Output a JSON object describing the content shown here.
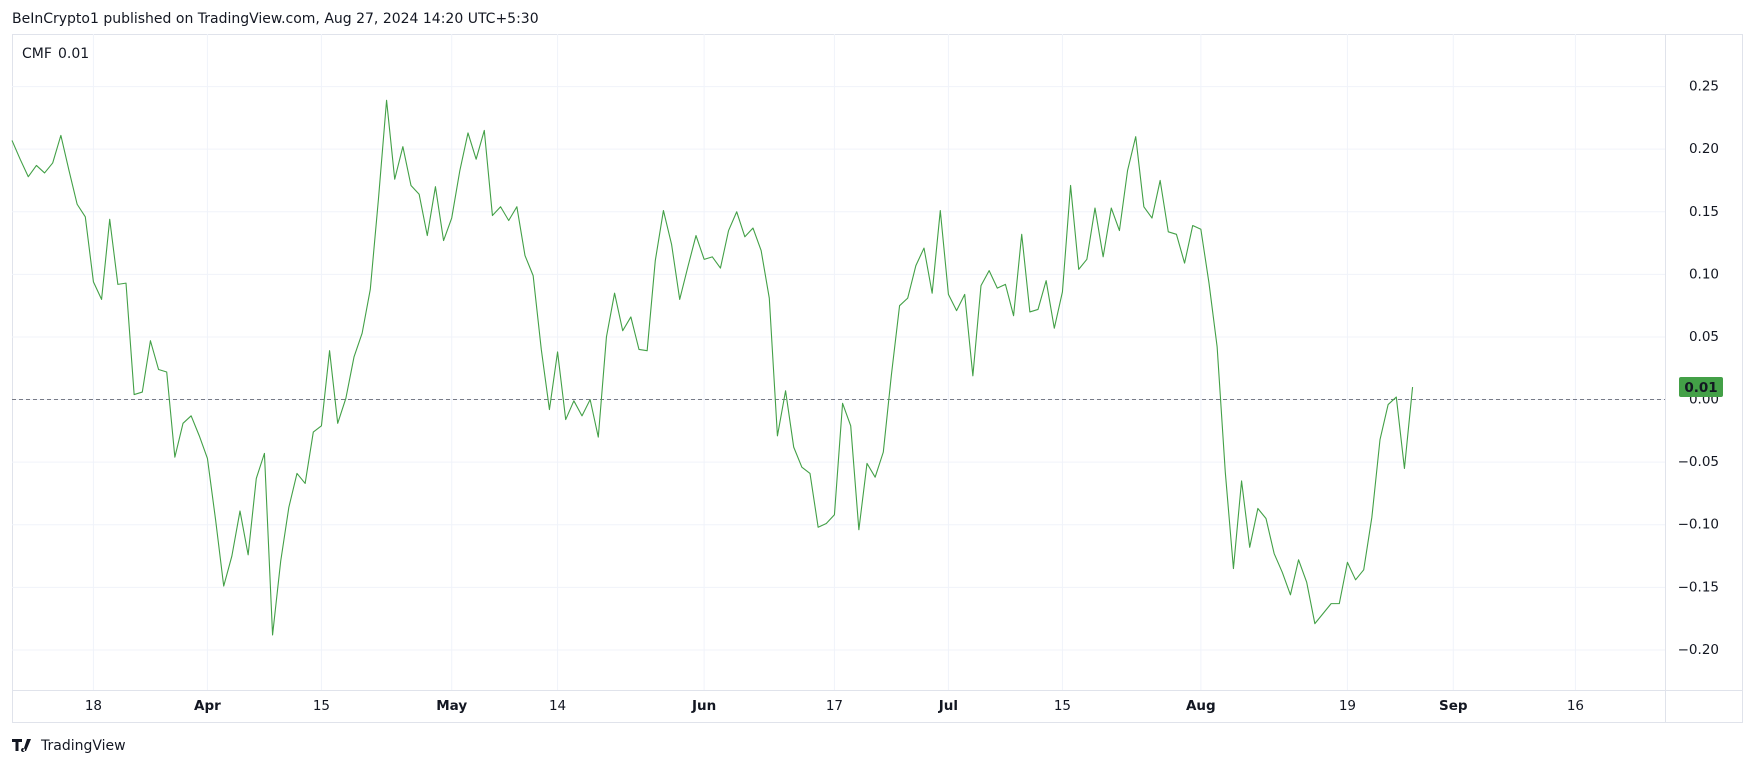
{
  "header": {
    "text": "BeInCrypto1 published on TradingView.com, Aug 27, 2024 14:20 UTC+5:30"
  },
  "footer": {
    "text": "TradingView"
  },
  "chart_data": {
    "type": "line",
    "x": [
      "2024-03-08",
      "2024-03-09",
      "2024-03-10",
      "2024-03-11",
      "2024-03-12",
      "2024-03-13",
      "2024-03-14",
      "2024-03-15",
      "2024-03-16",
      "2024-03-17",
      "2024-03-18",
      "2024-03-19",
      "2024-03-20",
      "2024-03-21",
      "2024-03-22",
      "2024-03-23",
      "2024-03-24",
      "2024-03-25",
      "2024-03-26",
      "2024-03-27",
      "2024-03-28",
      "2024-03-29",
      "2024-03-30",
      "2024-03-31",
      "2024-04-01",
      "2024-04-02",
      "2024-04-03",
      "2024-04-04",
      "2024-04-05",
      "2024-04-06",
      "2024-04-07",
      "2024-04-08",
      "2024-04-09",
      "2024-04-10",
      "2024-04-11",
      "2024-04-12",
      "2024-04-13",
      "2024-04-14",
      "2024-04-15",
      "2024-04-16",
      "2024-04-17",
      "2024-04-18",
      "2024-04-19",
      "2024-04-20",
      "2024-04-21",
      "2024-04-22",
      "2024-04-23",
      "2024-04-24",
      "2024-04-25",
      "2024-04-26",
      "2024-04-27",
      "2024-04-28",
      "2024-04-29",
      "2024-04-30",
      "2024-05-01",
      "2024-05-02",
      "2024-05-03",
      "2024-05-04",
      "2024-05-05",
      "2024-05-06",
      "2024-05-07",
      "2024-05-08",
      "2024-05-09",
      "2024-05-10",
      "2024-05-11",
      "2024-05-12",
      "2024-05-13",
      "2024-05-14",
      "2024-05-15",
      "2024-05-16",
      "2024-05-17",
      "2024-05-18",
      "2024-05-19",
      "2024-05-20",
      "2024-05-21",
      "2024-05-22",
      "2024-05-23",
      "2024-05-24",
      "2024-05-25",
      "2024-05-26",
      "2024-05-27",
      "2024-05-28",
      "2024-05-29",
      "2024-05-30",
      "2024-05-31",
      "2024-06-01",
      "2024-06-02",
      "2024-06-03",
      "2024-06-04",
      "2024-06-05",
      "2024-06-06",
      "2024-06-07",
      "2024-06-08",
      "2024-06-09",
      "2024-06-10",
      "2024-06-11",
      "2024-06-12",
      "2024-06-13",
      "2024-06-14",
      "2024-06-15",
      "2024-06-16",
      "2024-06-17",
      "2024-06-18",
      "2024-06-19",
      "2024-06-20",
      "2024-06-21",
      "2024-06-22",
      "2024-06-23",
      "2024-06-24",
      "2024-06-25",
      "2024-06-26",
      "2024-06-27",
      "2024-06-28",
      "2024-06-29",
      "2024-06-30",
      "2024-07-01",
      "2024-07-02",
      "2024-07-03",
      "2024-07-04",
      "2024-07-05",
      "2024-07-06",
      "2024-07-07",
      "2024-07-08",
      "2024-07-09",
      "2024-07-10",
      "2024-07-11",
      "2024-07-12",
      "2024-07-13",
      "2024-07-14",
      "2024-07-15",
      "2024-07-16",
      "2024-07-17",
      "2024-07-18",
      "2024-07-19",
      "2024-07-20",
      "2024-07-21",
      "2024-07-22",
      "2024-07-23",
      "2024-07-24",
      "2024-07-25",
      "2024-07-26",
      "2024-07-27",
      "2024-07-28",
      "2024-07-29",
      "2024-07-30",
      "2024-07-31",
      "2024-08-01",
      "2024-08-02",
      "2024-08-03",
      "2024-08-04",
      "2024-08-05",
      "2024-08-06",
      "2024-08-07",
      "2024-08-08",
      "2024-08-09",
      "2024-08-10",
      "2024-08-11",
      "2024-08-12",
      "2024-08-13",
      "2024-08-14",
      "2024-08-15",
      "2024-08-16",
      "2024-08-17",
      "2024-08-18",
      "2024-08-19",
      "2024-08-20",
      "2024-08-21",
      "2024-08-22",
      "2024-08-23",
      "2024-08-24",
      "2024-08-25",
      "2024-08-26",
      "2024-08-27"
    ],
    "series": [
      {
        "name": "CMF",
        "color": "#43a047",
        "last_value_label": "0.01",
        "values": [
          0.207,
          0.192,
          0.178,
          0.187,
          0.181,
          0.189,
          0.211,
          0.183,
          0.156,
          0.146,
          0.094,
          0.08,
          0.144,
          0.092,
          0.093,
          0.004,
          0.006,
          0.047,
          0.024,
          0.022,
          -0.046,
          -0.019,
          -0.013,
          -0.029,
          -0.047,
          -0.096,
          -0.149,
          -0.125,
          -0.089,
          -0.124,
          -0.063,
          -0.043,
          -0.188,
          -0.129,
          -0.086,
          -0.059,
          -0.067,
          -0.026,
          -0.021,
          0.039,
          -0.019,
          0.001,
          0.034,
          0.053,
          0.088,
          0.16,
          0.239,
          0.176,
          0.202,
          0.171,
          0.164,
          0.131,
          0.17,
          0.127,
          0.145,
          0.183,
          0.213,
          0.192,
          0.215,
          0.147,
          0.154,
          0.143,
          0.154,
          0.115,
          0.099,
          0.04,
          -0.008,
          0.038,
          -0.016,
          -0.001,
          -0.013,
          0.0,
          -0.03,
          0.05,
          0.085,
          0.055,
          0.066,
          0.04,
          0.039,
          0.111,
          0.151,
          0.124,
          0.08,
          0.106,
          0.131,
          0.112,
          0.114,
          0.105,
          0.135,
          0.15,
          0.13,
          0.137,
          0.119,
          0.081,
          -0.029,
          0.007,
          -0.038,
          -0.054,
          -0.059,
          -0.102,
          -0.099,
          -0.092,
          -0.003,
          -0.021,
          -0.104,
          -0.051,
          -0.062,
          -0.042,
          0.02,
          0.075,
          0.081,
          0.107,
          0.121,
          0.085,
          0.151,
          0.084,
          0.071,
          0.084,
          0.019,
          0.091,
          0.103,
          0.089,
          0.092,
          0.067,
          0.132,
          0.07,
          0.072,
          0.095,
          0.057,
          0.086,
          0.171,
          0.104,
          0.112,
          0.153,
          0.114,
          0.153,
          0.135,
          0.183,
          0.21,
          0.154,
          0.145,
          0.175,
          0.134,
          0.132,
          0.109,
          0.139,
          0.136,
          0.093,
          0.042,
          -0.058,
          -0.135,
          -0.065,
          -0.118,
          -0.087,
          -0.095,
          -0.123,
          -0.138,
          -0.156,
          -0.128,
          -0.146,
          -0.179,
          -0.171,
          -0.163,
          -0.163,
          -0.13,
          -0.144,
          -0.136,
          -0.094,
          -0.032,
          -0.004,
          0.002,
          -0.055,
          0.01
        ]
      }
    ],
    "reference_line": 0,
    "xlim": [
      "2024-03-08",
      "2024-09-27"
    ],
    "xticks": [
      {
        "value": "2024-03-18",
        "label": "18"
      },
      {
        "value": "2024-04-01",
        "label": "Apr"
      },
      {
        "value": "2024-04-15",
        "label": "15"
      },
      {
        "value": "2024-05-01",
        "label": "May"
      },
      {
        "value": "2024-05-14",
        "label": "14"
      },
      {
        "value": "2024-06-01",
        "label": "Jun"
      },
      {
        "value": "2024-06-17",
        "label": "17"
      },
      {
        "value": "2024-07-01",
        "label": "Jul"
      },
      {
        "value": "2024-07-15",
        "label": "15"
      },
      {
        "value": "2024-08-01",
        "label": "Aug"
      },
      {
        "value": "2024-08-19",
        "label": "19"
      },
      {
        "value": "2024-09-01",
        "label": "Sep"
      },
      {
        "value": "2024-09-16",
        "label": "16"
      }
    ],
    "ylim": [
      -0.232,
      0.292
    ],
    "yticks": [
      {
        "value": -0.2,
        "label": "−0.20"
      },
      {
        "value": -0.15,
        "label": "−0.15"
      },
      {
        "value": -0.1,
        "label": "−0.10"
      },
      {
        "value": -0.05,
        "label": "−0.05"
      },
      {
        "value": 0,
        "label": "0.00"
      },
      {
        "value": 0.05,
        "label": "0.05"
      },
      {
        "value": 0.1,
        "label": "0.10"
      },
      {
        "value": 0.15,
        "label": "0.15"
      },
      {
        "value": 0.2,
        "label": "0.20"
      },
      {
        "value": 0.25,
        "label": "0.25"
      }
    ],
    "grid": true
  }
}
